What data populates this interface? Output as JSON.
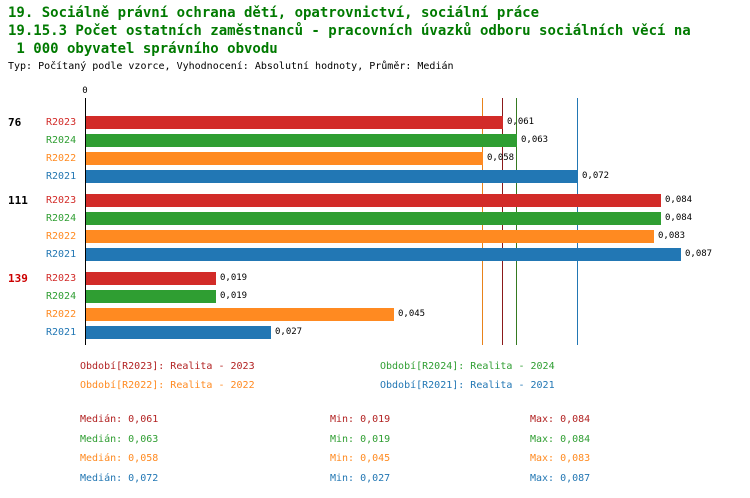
{
  "header": {
    "line1": "19. Sociálně právní ochrana dětí, opatrovnictví, sociální práce",
    "line2": "19.15.3 Počet ostatních zaměstnanců - pracovních úvazků odboru sociálních věcí na",
    "line3": " 1 000 obyvatel správního obvodu",
    "meta": "Typ: Počítaný podle vzorce, Vyhodnocení: Absolutní hodnoty, Průměr: Medián"
  },
  "chart_data": {
    "type": "bar",
    "orientation": "horizontal",
    "x_axis": {
      "zero_label": "0",
      "min": 0,
      "max": 0.095,
      "grid": false
    },
    "series_order": [
      "R2023",
      "R2024",
      "R2022",
      "R2021"
    ],
    "series_colors": {
      "R2023": "#d22b28",
      "R2024": "#2f9e32",
      "R2022": "#ff8a21",
      "R2021": "#2277b4"
    },
    "groups": [
      {
        "label": "76",
        "label_color": "#000000",
        "bars": [
          {
            "series": "R2023",
            "value": 0.061,
            "value_label": "0,061"
          },
          {
            "series": "R2024",
            "value": 0.063,
            "value_label": "0,063"
          },
          {
            "series": "R2022",
            "value": 0.058,
            "value_label": "0,058"
          },
          {
            "series": "R2021",
            "value": 0.072,
            "value_label": "0,072"
          }
        ]
      },
      {
        "label": "111",
        "label_color": "#000000",
        "bars": [
          {
            "series": "R2023",
            "value": 0.084,
            "value_label": "0,084"
          },
          {
            "series": "R2024",
            "value": 0.084,
            "value_label": "0,084"
          },
          {
            "series": "R2022",
            "value": 0.083,
            "value_label": "0,083"
          },
          {
            "series": "R2021",
            "value": 0.087,
            "value_label": "0,087"
          }
        ]
      },
      {
        "label": "139",
        "label_color": "#cc0000",
        "bars": [
          {
            "series": "R2023",
            "value": 0.019,
            "value_label": "0,019"
          },
          {
            "series": "R2024",
            "value": 0.019,
            "value_label": "0,019"
          },
          {
            "series": "R2022",
            "value": 0.045,
            "value_label": "0,045"
          },
          {
            "series": "R2021",
            "value": 0.027,
            "value_label": "0,027"
          }
        ]
      }
    ],
    "reference_lines": [
      {
        "series": "R2022",
        "value": 0.058,
        "color": "#e8821a"
      },
      {
        "series": "R2023",
        "value": 0.061,
        "color": "#8b1a1a"
      },
      {
        "series": "R2024",
        "value": 0.063,
        "color": "#357a21"
      },
      {
        "series": "R2021",
        "value": 0.072,
        "color": "#2277b4"
      }
    ],
    "legend": [
      {
        "text": "Období[R2023]: Realita - 2023",
        "color": "#b22222"
      },
      {
        "text": "Období[R2024]: Realita - 2024",
        "color": "#2f9e32"
      },
      {
        "text": "Období[R2022]: Realita - 2022",
        "color": "#ff8a21"
      },
      {
        "text": "Období[R2021]: Realita - 2021",
        "color": "#2277b4"
      }
    ],
    "stats": [
      {
        "median": "Medián: 0,061",
        "min": "Min: 0,019",
        "max": "Max: 0,084",
        "color": "#b22222"
      },
      {
        "median": "Medián: 0,063",
        "min": "Min: 0,019",
        "max": "Max: 0,084",
        "color": "#2f9e32"
      },
      {
        "median": "Medián: 0,058",
        "min": "Min: 0,045",
        "max": "Max: 0,083",
        "color": "#ff8a21"
      },
      {
        "median": "Medián: 0,072",
        "min": "Min: 0,027",
        "max": "Max: 0,087",
        "color": "#2277b4"
      }
    ]
  }
}
